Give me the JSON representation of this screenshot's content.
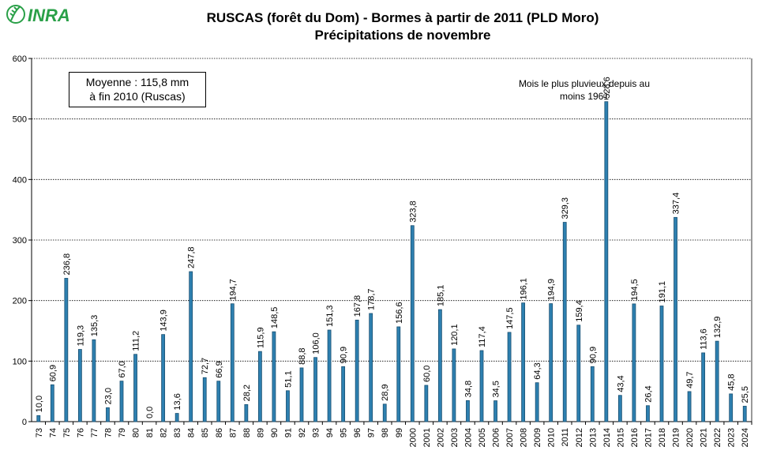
{
  "logo": {
    "text": "INRA",
    "color": "#2aa048"
  },
  "title": {
    "line1": "RUSCAS (forêt du Dom) - Bormes à partir de 2011 (PLD Moro)",
    "line2": "Précipitations de novembre"
  },
  "annotations": {
    "average_line1": "Moyenne : 115,8 mm",
    "average_line2": "à fin 2010 (Ruscas)",
    "peak_note_line1": "Mois le plus pluvieux depuis au",
    "peak_note_line2": "moins 1961"
  },
  "colors": {
    "bar": "#2e80b0",
    "bar_dark": "#1a4f70",
    "gridline": "#000000"
  },
  "chart_data": {
    "type": "bar",
    "title": "RUSCAS (forêt du Dom) - Bormes à partir de 2011 (PLD Moro) — Précipitations de novembre",
    "xlabel": "",
    "ylabel": "",
    "ylim": [
      0,
      600
    ],
    "yticks": [
      0,
      100,
      200,
      300,
      400,
      500,
      600
    ],
    "grid": true,
    "categories": [
      "73",
      "74",
      "75",
      "76",
      "77",
      "78",
      "79",
      "80",
      "81",
      "82",
      "83",
      "84",
      "85",
      "86",
      "87",
      "88",
      "89",
      "90",
      "91",
      "92",
      "93",
      "94",
      "95",
      "96",
      "97",
      "98",
      "99",
      "2000",
      "2001",
      "2002",
      "2003",
      "2004",
      "2005",
      "2006",
      "2007",
      "2008",
      "2009",
      "2010",
      "2011",
      "2012",
      "2013",
      "2014",
      "2015",
      "2016",
      "2017",
      "2018",
      "2019",
      "2020",
      "2021",
      "2022",
      "2023",
      "2024"
    ],
    "values": [
      10.0,
      60.9,
      236.8,
      119.3,
      135.3,
      23.0,
      67.0,
      111.2,
      0.0,
      143.9,
      13.6,
      247.8,
      72.7,
      66.9,
      194.7,
      28.2,
      115.9,
      148.5,
      51.1,
      88.8,
      106.0,
      151.3,
      90.9,
      167.8,
      178.7,
      28.9,
      156.6,
      323.8,
      60.0,
      185.1,
      120.1,
      34.8,
      117.4,
      34.5,
      147.5,
      196.1,
      64.3,
      194.9,
      329.3,
      159.4,
      90.9,
      528.6,
      43.4,
      194.5,
      26.4,
      191.1,
      337.4,
      49.7,
      113.6,
      132.9,
      45.8,
      25.5
    ],
    "value_labels": [
      "10,0",
      "60,9",
      "236,8",
      "119,3",
      "135,3",
      "23,0",
      "67,0",
      "111,2",
      "0,0",
      "143,9",
      "13,6",
      "247,8",
      "72,7",
      "66,9",
      "194,7",
      "28,2",
      "115,9",
      "148,5",
      "51,1",
      "88,8",
      "106,0",
      "151,3",
      "90,9",
      "167,8",
      "178,7",
      "28,9",
      "156,6",
      "323,8",
      "60,0",
      "185,1",
      "120,1",
      "34,8",
      "117,4",
      "34,5",
      "147,5",
      "196,1",
      "64,3",
      "194,9",
      "329,3",
      "159,4",
      "90,9",
      "528,6",
      "43,4",
      "194,5",
      "26,4",
      "191,1",
      "337,4",
      "49,7",
      "113,6",
      "132,9",
      "45,8",
      "25,5"
    ]
  }
}
